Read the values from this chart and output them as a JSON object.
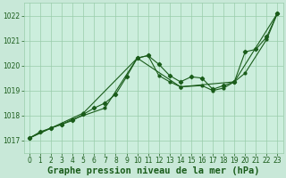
{
  "title": "Graphe pression niveau de la mer (hPa)",
  "background_color": "#c8e8d8",
  "plot_background": "#cceedd",
  "grid_color": "#99ccaa",
  "line_color": "#1a5c1a",
  "xlim": [
    -0.5,
    23.5
  ],
  "ylim": [
    1016.5,
    1022.5
  ],
  "xticks": [
    0,
    1,
    2,
    3,
    4,
    5,
    6,
    7,
    8,
    9,
    10,
    11,
    12,
    13,
    14,
    15,
    16,
    17,
    18,
    19,
    20,
    21,
    22,
    23
  ],
  "yticks": [
    1017,
    1018,
    1019,
    1020,
    1021,
    1022
  ],
  "series1_x": [
    0,
    1,
    2,
    3,
    4,
    5,
    6,
    7,
    8,
    9,
    10,
    11,
    12,
    13,
    14,
    15,
    16,
    17,
    18,
    19,
    20,
    21,
    22,
    23
  ],
  "series1_y": [
    1017.1,
    1017.35,
    1017.5,
    1017.65,
    1017.8,
    1018.05,
    1018.3,
    1018.5,
    1018.85,
    1019.55,
    1020.3,
    1020.4,
    1020.05,
    1019.6,
    1019.35,
    1019.55,
    1019.5,
    1019.05,
    1019.2,
    1019.35,
    1020.55,
    1020.65,
    1021.15,
    1022.1
  ],
  "series2_x": [
    0,
    2,
    3,
    4,
    7,
    10,
    11,
    12,
    13,
    14,
    16,
    17,
    18,
    19,
    20,
    22,
    23
  ],
  "series2_y": [
    1017.1,
    1017.5,
    1017.65,
    1017.85,
    1018.3,
    1020.3,
    1020.4,
    1019.6,
    1019.35,
    1019.15,
    1019.2,
    1019.0,
    1019.1,
    1019.35,
    1019.7,
    1021.05,
    1022.1
  ],
  "series3_x": [
    0,
    5,
    10,
    14,
    19,
    23
  ],
  "series3_y": [
    1017.1,
    1018.1,
    1020.3,
    1019.15,
    1019.35,
    1022.1
  ],
  "title_fontsize": 7.5,
  "tick_fontsize": 5.5
}
